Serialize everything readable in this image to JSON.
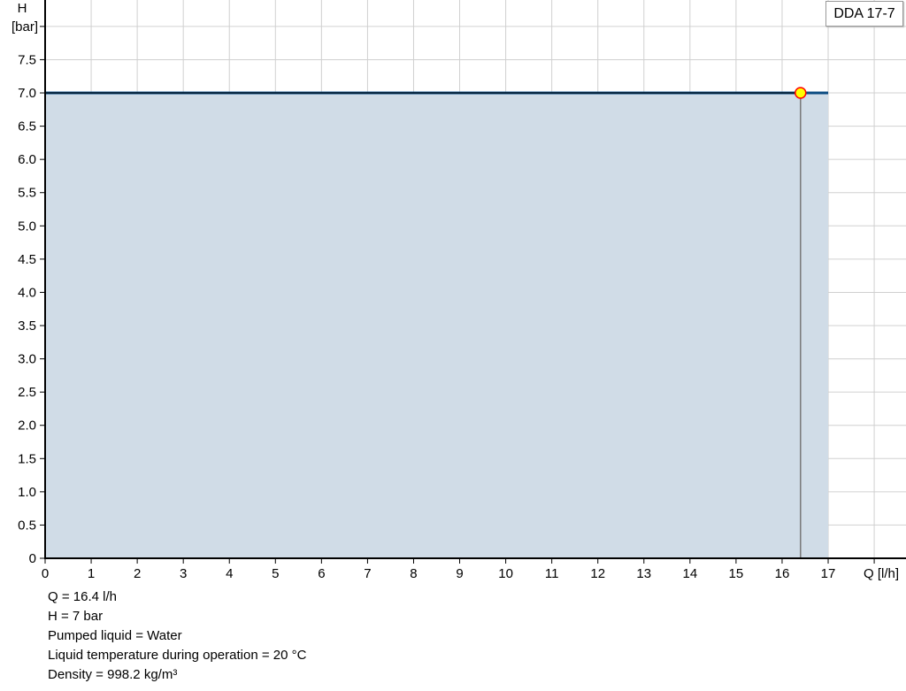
{
  "chart_data": {
    "type": "area",
    "title": "",
    "xlabel": "Q [l/h]",
    "ylabel_line1": "H",
    "ylabel_line2": "[bar]",
    "xlim": [
      0,
      18
    ],
    "ylim": [
      0,
      8
    ],
    "x_ticks": [
      0,
      1,
      2,
      3,
      4,
      5,
      6,
      7,
      8,
      9,
      10,
      11,
      12,
      13,
      14,
      15,
      16,
      17
    ],
    "y_ticks": [
      "0",
      "0.5",
      "1.0",
      "1.5",
      "2.0",
      "2.5",
      "3.0",
      "3.5",
      "4.0",
      "4.5",
      "5.0",
      "5.5",
      "6.0",
      "6.5",
      "7.0",
      "7.5"
    ],
    "grid": true,
    "legend": {
      "label": "DDA 17-7",
      "position": "top-right"
    },
    "series": [
      {
        "name": "DDA 17-7",
        "x": [
          0,
          17
        ],
        "y": [
          7.0,
          7.0
        ],
        "color": "#0a4a80",
        "fill": "#d0dce7"
      }
    ],
    "operating_point": {
      "q": 16.4,
      "h": 7.0,
      "fill": "#ffff00",
      "stroke": "#ff0000"
    }
  },
  "info": {
    "q": "Q = 16.4 l/h",
    "h": "H = 7 bar",
    "liquid": "Pumped liquid = Water",
    "temperature": "Liquid temperature during operation = 20 °C",
    "density": "Density = 998.2 kg/m³"
  }
}
